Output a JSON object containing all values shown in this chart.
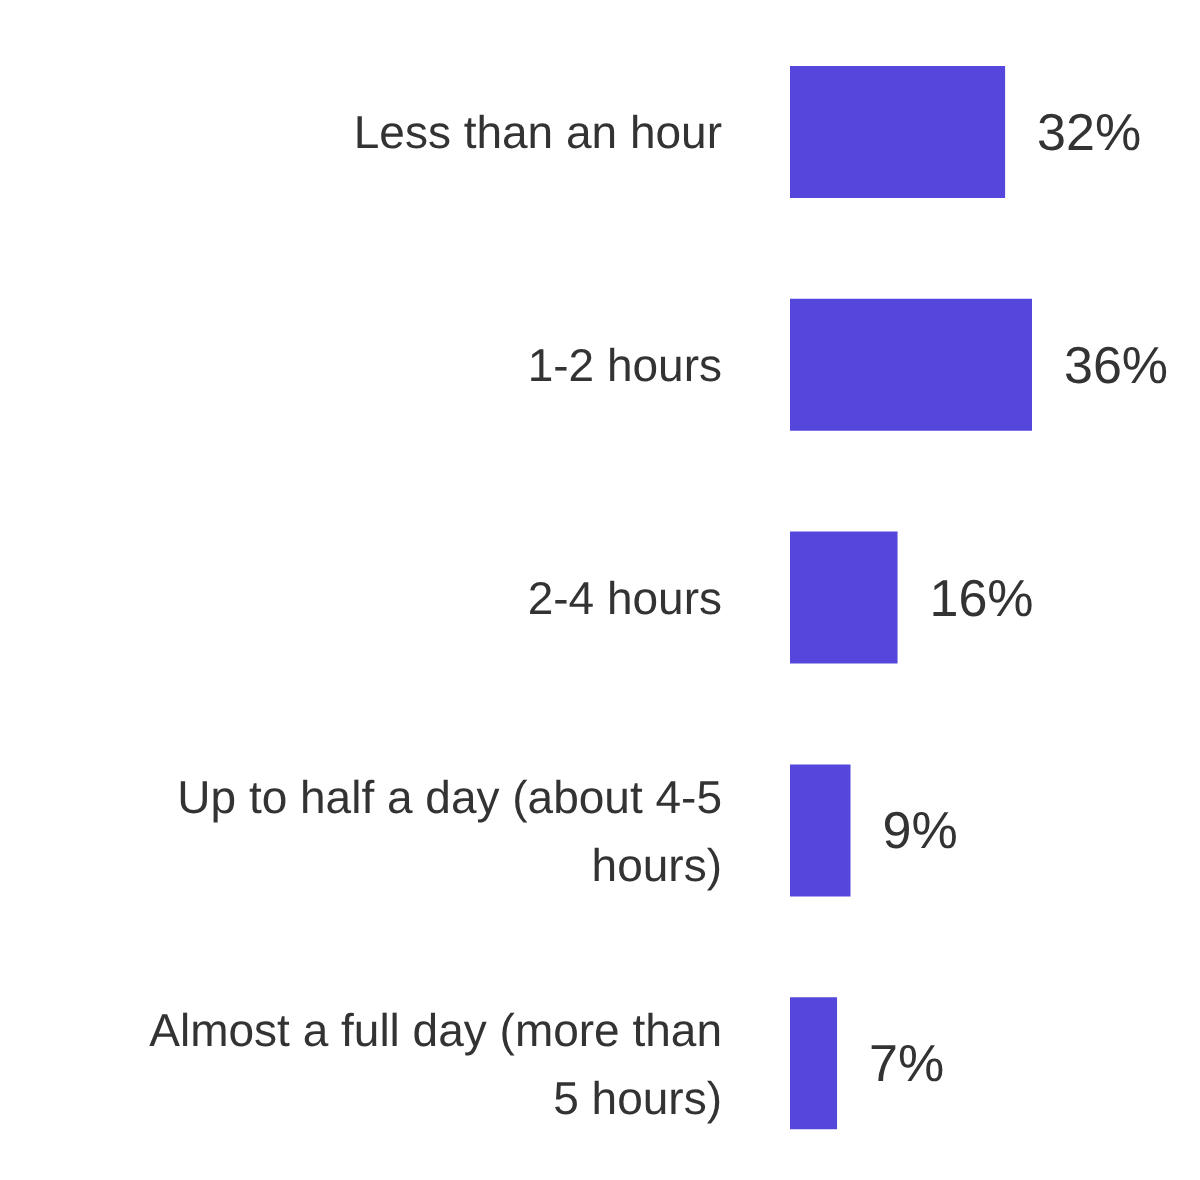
{
  "chart_data": {
    "type": "bar",
    "orientation": "horizontal",
    "tick_labels": "y",
    "categories": [
      "Less than an hour",
      "1-2 hours",
      "2-4 hours",
      "Up to half a day (about 4-5 hours)",
      "Almost a full day (more than 5 hours)"
    ],
    "values": [
      32,
      36,
      16,
      9,
      7
    ],
    "value_labels": [
      "32%",
      "36%",
      "16%",
      "9%",
      "7%"
    ],
    "color": "#5647dc"
  }
}
